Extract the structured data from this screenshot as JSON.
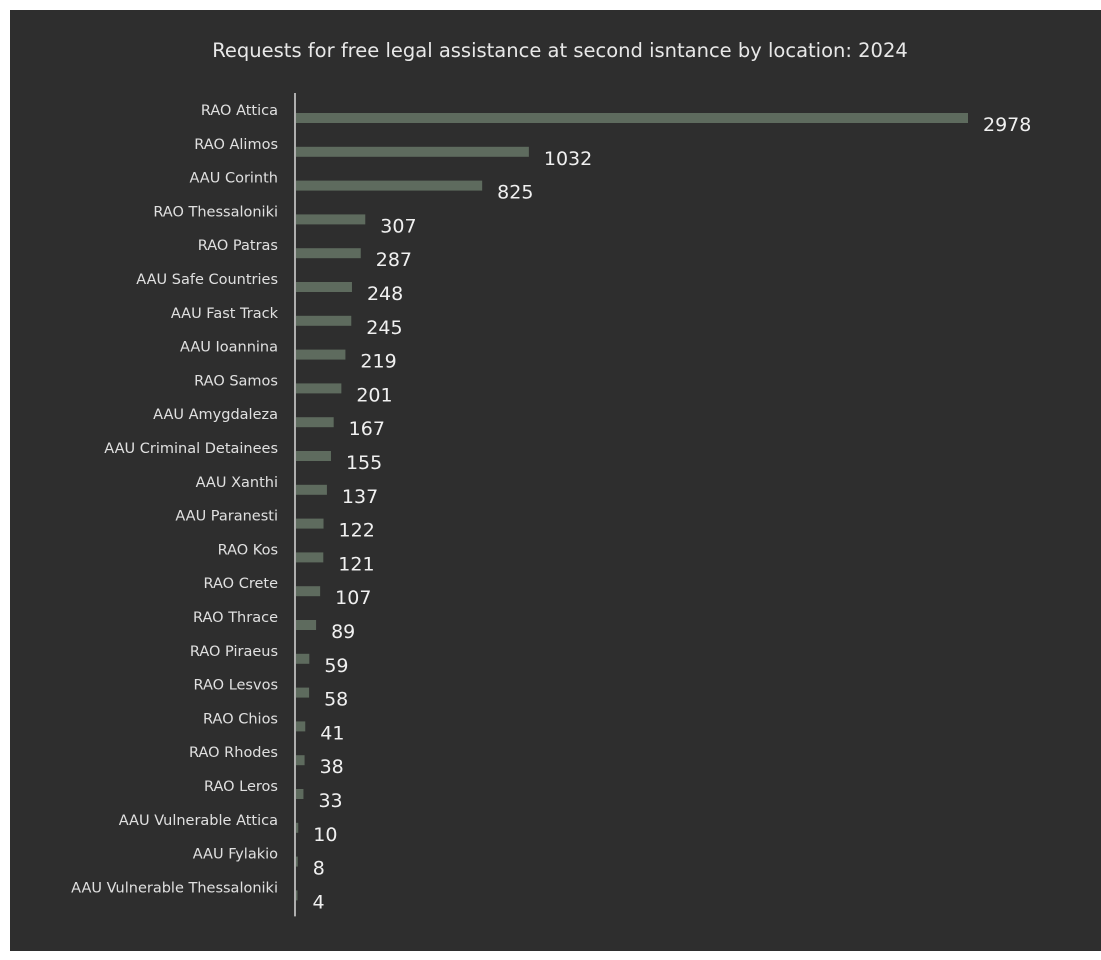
{
  "chart_data": {
    "type": "bar",
    "orientation": "horizontal",
    "title": "Requests for free legal assistance at second isntance by location: 2024",
    "xlabel": "",
    "ylabel": "",
    "xlim": [
      0,
      2978
    ],
    "grid": false,
    "legend": "none",
    "categories": [
      "RAO Attica",
      "RAO Alimos",
      "AAU Corinth",
      "RAO Thessaloniki",
      "RAO Patras",
      "AAU Safe Countries",
      "AAU Fast Track",
      "AAU Ioannina",
      "RAO Samos",
      "AAU Amygdaleza",
      "AAU Criminal Detainees",
      "AAU Xanthi",
      "AAU Paranesti",
      "RAO Kos",
      "RAO Crete",
      "RAO Thrace",
      "RAO Piraeus",
      "RAO Lesvos",
      "RAO Chios",
      "RAO Rhodes",
      "RAO Leros",
      "AAU Vulnerable Attica",
      "AAU Fylakio",
      "AAU Vulnerable Thessaloniki"
    ],
    "values": [
      2978,
      1032,
      825,
      307,
      287,
      248,
      245,
      219,
      201,
      167,
      155,
      137,
      122,
      121,
      107,
      89,
      59,
      58,
      41,
      38,
      33,
      10,
      8,
      4
    ]
  },
  "colors": {
    "background": "#2e2e2e",
    "bar": "#5e6b5e",
    "axis": "#d8d8d8",
    "text": "#e8e8e8"
  }
}
